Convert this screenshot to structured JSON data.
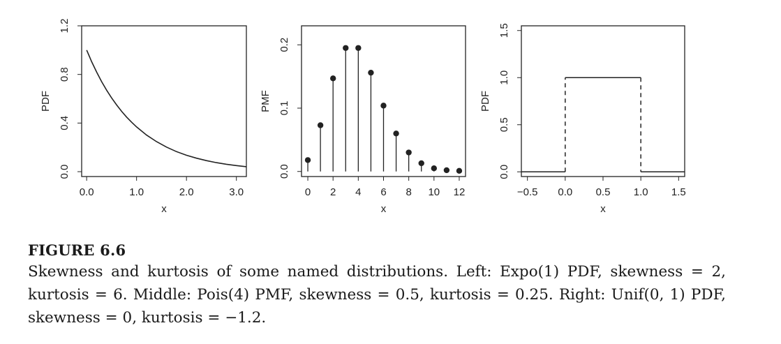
{
  "chart_data": [
    {
      "type": "line",
      "xlabel": "x",
      "ylabel": "PDF",
      "xlim": [
        -0.1,
        3.2
      ],
      "ylim": [
        -0.04,
        1.2
      ],
      "xticks": [
        "0.0",
        "1.0",
        "2.0",
        "3.0"
      ],
      "yticks": [
        "0.0",
        "0.4",
        "0.8",
        "1.2"
      ],
      "x": [
        0,
        0.1,
        0.2,
        0.3,
        0.4,
        0.5,
        0.6,
        0.7,
        0.8,
        0.9,
        1.0,
        1.2,
        1.4,
        1.6,
        1.8,
        2.0,
        2.2,
        2.4,
        2.6,
        2.8,
        3.0,
        3.2
      ],
      "y": [
        1.0,
        0.905,
        0.819,
        0.741,
        0.67,
        0.607,
        0.549,
        0.497,
        0.449,
        0.407,
        0.368,
        0.301,
        0.247,
        0.202,
        0.165,
        0.135,
        0.111,
        0.091,
        0.074,
        0.061,
        0.05,
        0.041
      ],
      "grid": false
    },
    {
      "type": "scatter",
      "xlabel": "x",
      "ylabel": "PMF",
      "xlim": [
        -0.5,
        12.5
      ],
      "ylim": [
        -0.008,
        0.23
      ],
      "xticks": [
        "0",
        "2",
        "4",
        "6",
        "8",
        "10",
        "12"
      ],
      "yticks": [
        "0.0",
        "0.1",
        "0.2"
      ],
      "x": [
        0,
        1,
        2,
        3,
        4,
        5,
        6,
        7,
        8,
        9,
        10,
        11,
        12
      ],
      "y": [
        0.018,
        0.073,
        0.147,
        0.195,
        0.195,
        0.156,
        0.104,
        0.06,
        0.03,
        0.013,
        0.005,
        0.002,
        0.001
      ],
      "grid": false
    },
    {
      "type": "line",
      "xlabel": "x",
      "ylabel": "PDF",
      "xlim": [
        -0.58,
        1.58
      ],
      "ylim": [
        -0.05,
        1.55
      ],
      "xticks": [
        "−0.5",
        "0.0",
        "0.5",
        "1.0",
        "1.5"
      ],
      "yticks": [
        "0.0",
        "0.5",
        "1.0",
        "1.5"
      ],
      "x": [
        -0.58,
        0,
        0,
        1,
        1,
        1.58
      ],
      "y": [
        0,
        0,
        1,
        1,
        0,
        0
      ],
      "grid": false
    }
  ],
  "caption": {
    "label": "FIGURE 6.6",
    "text": "Skewness and kurtosis of some named distributions. Left: Expo(1) PDF, skewness = 2, kurtosis = 6. Middle: Pois(4) PMF, skewness = 0.5, kurtosis = 0.25. Right: Unif(0, 1) PDF, skewness = 0, kurtosis = −1.2."
  }
}
